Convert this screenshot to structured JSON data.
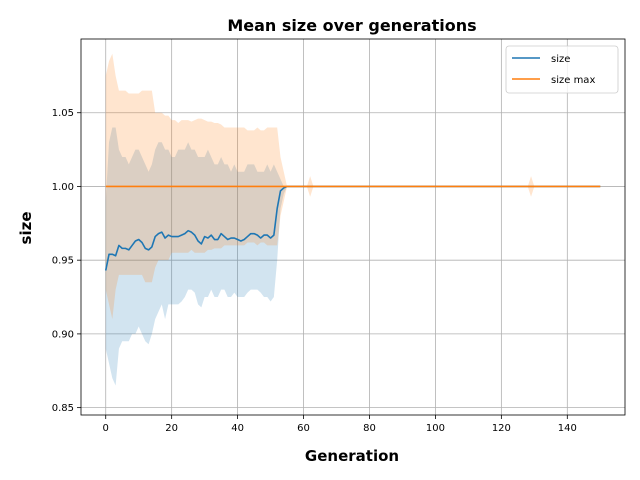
{
  "chart_data": {
    "type": "line",
    "title": "Mean size over generations",
    "xlabel": "Generation",
    "ylabel": "size",
    "xlim": [
      -7.5,
      157.5
    ],
    "ylim": [
      0.845,
      1.1
    ],
    "x_ticks": [
      0,
      20,
      40,
      60,
      80,
      100,
      120,
      140
    ],
    "y_ticks": [
      0.85,
      0.9,
      0.95,
      1.0,
      1.05
    ],
    "y_tick_labels": [
      "0.85",
      "0.90",
      "0.95",
      "1.00",
      "1.05"
    ],
    "grid": true,
    "legend_position": "top-right",
    "series": [
      {
        "name": "size",
        "color": "#1f77b4",
        "x": [
          0,
          1,
          2,
          3,
          4,
          5,
          6,
          7,
          8,
          9,
          10,
          11,
          12,
          13,
          14,
          15,
          16,
          17,
          18,
          19,
          20,
          21,
          22,
          23,
          24,
          25,
          26,
          27,
          28,
          29,
          30,
          31,
          32,
          33,
          34,
          35,
          36,
          37,
          38,
          39,
          40,
          41,
          42,
          43,
          44,
          45,
          46,
          47,
          48,
          49,
          50,
          51,
          52,
          53,
          54,
          55,
          60,
          70,
          80,
          90,
          100,
          110,
          120,
          130,
          140,
          150
        ],
        "y": [
          0.943,
          0.954,
          0.954,
          0.953,
          0.96,
          0.958,
          0.958,
          0.957,
          0.96,
          0.963,
          0.964,
          0.962,
          0.958,
          0.957,
          0.959,
          0.966,
          0.968,
          0.969,
          0.965,
          0.967,
          0.966,
          0.966,
          0.966,
          0.967,
          0.968,
          0.97,
          0.969,
          0.967,
          0.963,
          0.961,
          0.966,
          0.965,
          0.967,
          0.964,
          0.964,
          0.968,
          0.966,
          0.964,
          0.965,
          0.965,
          0.964,
          0.963,
          0.964,
          0.966,
          0.968,
          0.968,
          0.967,
          0.965,
          0.967,
          0.967,
          0.965,
          0.967,
          0.985,
          0.997,
          0.999,
          1.0,
          1.0,
          1.0,
          1.0,
          1.0,
          1.0,
          1.0,
          1.0,
          1.0,
          1.0,
          1.0
        ],
        "band_upper": [
          0.99,
          1.03,
          1.04,
          1.04,
          1.025,
          1.02,
          1.02,
          1.015,
          1.02,
          1.025,
          1.025,
          1.02,
          1.015,
          1.01,
          1.015,
          1.025,
          1.03,
          1.03,
          1.025,
          1.025,
          1.02,
          1.02,
          1.025,
          1.025,
          1.025,
          1.03,
          1.025,
          1.025,
          1.02,
          1.02,
          1.02,
          1.025,
          1.02,
          1.015,
          1.015,
          1.02,
          1.015,
          1.015,
          1.01,
          1.015,
          1.01,
          1.01,
          1.01,
          1.015,
          1.015,
          1.015,
          1.01,
          1.01,
          1.01,
          1.015,
          1.01,
          1.015,
          1.01,
          1.005,
          1.0,
          1.0,
          1.0,
          1.0,
          1.0,
          1.0,
          1.0,
          1.0,
          1.0,
          1.0,
          1.0,
          1.0
        ],
        "band_lower": [
          0.89,
          0.88,
          0.87,
          0.865,
          0.89,
          0.895,
          0.895,
          0.895,
          0.9,
          0.9,
          0.905,
          0.9,
          0.895,
          0.893,
          0.9,
          0.91,
          0.915,
          0.92,
          0.91,
          0.92,
          0.92,
          0.92,
          0.92,
          0.922,
          0.925,
          0.93,
          0.93,
          0.928,
          0.92,
          0.918,
          0.925,
          0.925,
          0.93,
          0.925,
          0.925,
          0.93,
          0.93,
          0.925,
          0.925,
          0.928,
          0.925,
          0.925,
          0.925,
          0.928,
          0.93,
          0.93,
          0.93,
          0.928,
          0.925,
          0.925,
          0.922,
          0.925,
          0.95,
          0.985,
          0.995,
          1.0,
          1.0,
          1.0,
          1.0,
          1.0,
          1.0,
          1.0,
          1.0,
          1.0,
          1.0,
          1.0
        ]
      },
      {
        "name": "size max",
        "color": "#ff7f0e",
        "x": [
          0,
          1,
          2,
          3,
          4,
          5,
          6,
          7,
          8,
          9,
          10,
          11,
          12,
          13,
          14,
          15,
          16,
          17,
          18,
          19,
          20,
          21,
          22,
          23,
          24,
          25,
          26,
          27,
          28,
          29,
          30,
          31,
          32,
          33,
          34,
          35,
          36,
          37,
          38,
          39,
          40,
          41,
          42,
          43,
          44,
          45,
          46,
          47,
          48,
          49,
          50,
          51,
          52,
          53,
          54,
          55,
          60,
          61,
          62,
          63,
          64,
          70,
          80,
          90,
          100,
          110,
          120,
          127,
          128,
          129,
          130,
          131,
          140,
          150
        ],
        "y": [
          1.0,
          1.0,
          1.0,
          1.0,
          1.0,
          1.0,
          1.0,
          1.0,
          1.0,
          1.0,
          1.0,
          1.0,
          1.0,
          1.0,
          1.0,
          1.0,
          1.0,
          1.0,
          1.0,
          1.0,
          1.0,
          1.0,
          1.0,
          1.0,
          1.0,
          1.0,
          1.0,
          1.0,
          1.0,
          1.0,
          1.0,
          1.0,
          1.0,
          1.0,
          1.0,
          1.0,
          1.0,
          1.0,
          1.0,
          1.0,
          1.0,
          1.0,
          1.0,
          1.0,
          1.0,
          1.0,
          1.0,
          1.0,
          1.0,
          1.0,
          1.0,
          1.0,
          1.0,
          1.0,
          1.0,
          1.0,
          1.0,
          1.0,
          1.0,
          1.0,
          1.0,
          1.0,
          1.0,
          1.0,
          1.0,
          1.0,
          1.0,
          1.0,
          1.0,
          1.0,
          1.0,
          1.0,
          1.0,
          1.0
        ],
        "band_upper": [
          1.075,
          1.085,
          1.09,
          1.075,
          1.065,
          1.065,
          1.065,
          1.063,
          1.063,
          1.063,
          1.063,
          1.065,
          1.065,
          1.065,
          1.065,
          1.05,
          1.05,
          1.05,
          1.048,
          1.048,
          1.045,
          1.045,
          1.043,
          1.045,
          1.045,
          1.045,
          1.044,
          1.045,
          1.046,
          1.046,
          1.045,
          1.044,
          1.044,
          1.043,
          1.043,
          1.042,
          1.04,
          1.04,
          1.04,
          1.04,
          1.04,
          1.04,
          1.04,
          1.038,
          1.038,
          1.038,
          1.04,
          1.038,
          1.038,
          1.04,
          1.04,
          1.04,
          1.04,
          1.02,
          1.01,
          1.0,
          1.0,
          1.0,
          1.007,
          1.0,
          1.0,
          1.0,
          1.0,
          1.0,
          1.0,
          1.0,
          1.0,
          1.0,
          1.0,
          1.007,
          1.0,
          1.0,
          1.0,
          1.0
        ],
        "band_lower": [
          0.93,
          0.92,
          0.91,
          0.93,
          0.94,
          0.94,
          0.94,
          0.94,
          0.94,
          0.94,
          0.94,
          0.94,
          0.935,
          0.935,
          0.935,
          0.945,
          0.95,
          0.95,
          0.95,
          0.95,
          0.955,
          0.955,
          0.955,
          0.955,
          0.955,
          0.955,
          0.957,
          0.955,
          0.955,
          0.955,
          0.955,
          0.957,
          0.957,
          0.958,
          0.958,
          0.958,
          0.96,
          0.96,
          0.96,
          0.96,
          0.96,
          0.96,
          0.96,
          0.962,
          0.962,
          0.962,
          0.96,
          0.962,
          0.962,
          0.96,
          0.96,
          0.96,
          0.96,
          0.98,
          0.99,
          1.0,
          1.0,
          1.0,
          0.993,
          1.0,
          1.0,
          1.0,
          1.0,
          1.0,
          1.0,
          1.0,
          1.0,
          1.0,
          1.0,
          0.993,
          1.0,
          1.0,
          1.0,
          1.0
        ]
      }
    ]
  }
}
